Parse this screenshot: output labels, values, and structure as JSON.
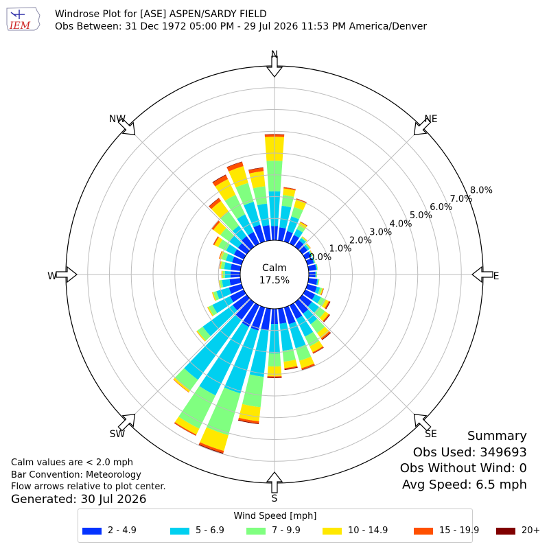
{
  "logo": {
    "text": "IEM"
  },
  "title": {
    "line1": "Windrose Plot for [ASE] ASPEN/SARDY FIELD",
    "line2": "Obs Between: 31 Dec 1972 05:00 PM - 29 Jul 2026 11:53 PM America/Denver"
  },
  "center": {
    "label": "Calm",
    "value": "17.5%"
  },
  "summary": {
    "heading": "Summary",
    "obs_used": "Obs Used: 349693",
    "obs_without_wind": "Obs Without Wind: 0",
    "avg_speed": "Avg Speed: 6.5 mph"
  },
  "notes": {
    "calm": "Calm values are < 2.0 mph",
    "convention": "Bar Convention: Meteorology",
    "flow": "Flow arrows relative to plot center."
  },
  "generated": "Generated: 30 Jul 2026",
  "legend": {
    "title": "Wind Speed [mph]",
    "items": [
      {
        "label": "2 - 4.9",
        "color": "#0433ff"
      },
      {
        "label": "5 - 6.9",
        "color": "#00d0f0"
      },
      {
        "label": "7 - 9.9",
        "color": "#80ff80"
      },
      {
        "label": "10 - 14.9",
        "color": "#ffe800"
      },
      {
        "label": "15 - 19.9",
        "color": "#ff5000"
      },
      {
        "label": "20+",
        "color": "#800000"
      }
    ]
  },
  "chart_data": {
    "type": "windrose",
    "calm_percent": 17.5,
    "rmax": 8.0,
    "radial_ticks": [
      0,
      1,
      2,
      3,
      4,
      5,
      6,
      7,
      8
    ],
    "radial_tick_labels": [
      "0.0%",
      "1.0%",
      "2.0%",
      "3.0%",
      "4.0%",
      "5.0%",
      "6.0%",
      "7.0%",
      "8.0%"
    ],
    "directions": [
      "N",
      "NE",
      "E",
      "SE",
      "S",
      "SW",
      "W",
      "NW"
    ],
    "direction_angles_deg": [
      0,
      10,
      20,
      30,
      40,
      50,
      60,
      70,
      80,
      90,
      100,
      110,
      120,
      130,
      140,
      150,
      160,
      170,
      180,
      190,
      200,
      210,
      220,
      230,
      240,
      250,
      260,
      270,
      280,
      290,
      300,
      310,
      320,
      330,
      340,
      350
    ],
    "series": [
      {
        "name": "2 - 4.9",
        "values": [
          0.65,
          0.6,
          0.5,
          0.45,
          0.35,
          0.3,
          0.3,
          0.3,
          0.35,
          0.3,
          0.4,
          0.45,
          0.5,
          0.55,
          0.65,
          0.7,
          0.8,
          0.7,
          0.7,
          1.0,
          1.1,
          1.1,
          1.0,
          0.8,
          0.7,
          0.6,
          0.5,
          0.45,
          0.45,
          0.45,
          0.5,
          0.5,
          0.6,
          0.6,
          0.8,
          0.7
        ]
      },
      {
        "name": "5 - 6.9",
        "values": [
          1.6,
          1.0,
          0.7,
          0.3,
          0.15,
          0.1,
          0.05,
          0.05,
          0.05,
          0.05,
          0.05,
          0.15,
          0.3,
          0.4,
          0.6,
          0.9,
          1.15,
          1.25,
          1.35,
          2.15,
          3.0,
          3.5,
          3.4,
          1.7,
          0.9,
          0.6,
          0.35,
          0.25,
          0.3,
          0.3,
          0.4,
          0.5,
          0.6,
          0.9,
          1.1,
          1.0
        ]
      },
      {
        "name": "7 - 9.9",
        "values": [
          1.4,
          0.5,
          0.45,
          0.2,
          0.05,
          0.05,
          0.03,
          0.02,
          0.02,
          0.02,
          0.03,
          0.1,
          0.25,
          0.35,
          0.5,
          0.5,
          0.6,
          0.5,
          0.6,
          1.4,
          2.0,
          1.7,
          0.6,
          0.3,
          0.2,
          0.15,
          0.1,
          0.1,
          0.15,
          0.2,
          0.4,
          0.5,
          0.8,
          1.0,
          0.9,
          0.8
        ]
      },
      {
        "name": "10 - 14.9",
        "values": [
          1.1,
          0.3,
          0.35,
          0.15,
          0.03,
          0.03,
          0.02,
          0.01,
          0.01,
          0.01,
          0.02,
          0.05,
          0.15,
          0.2,
          0.3,
          0.3,
          0.35,
          0.3,
          0.45,
          0.65,
          0.75,
          0.3,
          0.1,
          0.05,
          0.05,
          0.05,
          0.05,
          0.05,
          0.05,
          0.1,
          0.2,
          0.4,
          0.6,
          0.8,
          0.8,
          0.7
        ]
      },
      {
        "name": "15 - 19.9",
        "values": [
          0.1,
          0.05,
          0.05,
          0.02,
          0.01,
          0.01,
          0.01,
          0.0,
          0.0,
          0.0,
          0.0,
          0.02,
          0.05,
          0.05,
          0.07,
          0.05,
          0.07,
          0.05,
          0.05,
          0.1,
          0.1,
          0.05,
          0.02,
          0.01,
          0.01,
          0.01,
          0.01,
          0.01,
          0.02,
          0.03,
          0.05,
          0.1,
          0.15,
          0.2,
          0.2,
          0.15
        ]
      },
      {
        "name": "20+",
        "values": [
          0.02,
          0.01,
          0.01,
          0.01,
          0.0,
          0.0,
          0.0,
          0.0,
          0.0,
          0.0,
          0.0,
          0.01,
          0.03,
          0.03,
          0.03,
          0.02,
          0.04,
          0.03,
          0.03,
          0.03,
          0.04,
          0.01,
          0.0,
          0.0,
          0.0,
          0.0,
          0.0,
          0.0,
          0.0,
          0.0,
          0.01,
          0.01,
          0.02,
          0.03,
          0.02,
          0.02
        ]
      }
    ]
  }
}
